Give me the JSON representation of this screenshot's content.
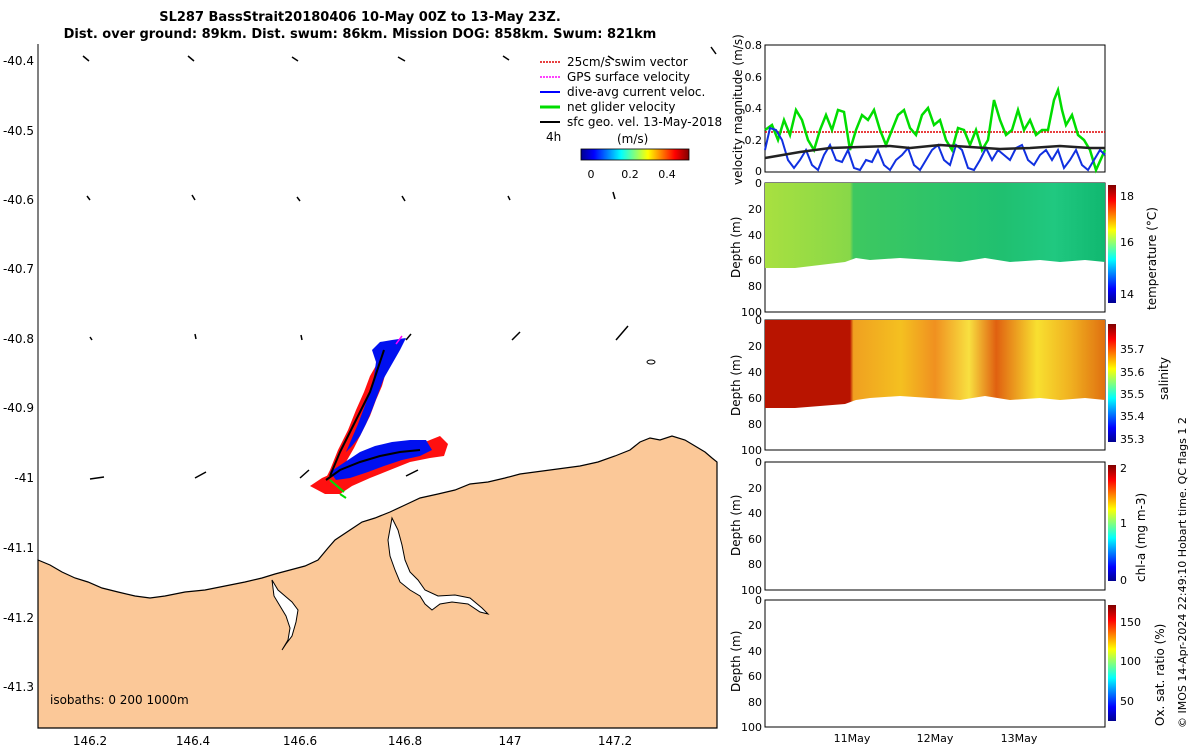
{
  "header": {
    "title_line1": "SL287 BassStrait20180406 10-May 00Z to 13-May 23Z.",
    "title_line2": "Dist. over ground: 89km. Dist. swum: 86km. Mission DOG: 858km. Swum: 821km"
  },
  "map": {
    "lat_ticks": [
      "-40.4",
      "-40.5",
      "-40.6",
      "-40.7",
      "-40.8",
      "-40.9",
      "-41",
      "-41.1",
      "-41.2",
      "-41.3"
    ],
    "lon_ticks": [
      "146.2",
      "146.4",
      "146.6",
      "146.8",
      "147",
      "147.2"
    ],
    "isobaths_label": "isobaths: 0   200  1000m",
    "legend": [
      {
        "label": "25cm/s swim vector",
        "color": "#e00000"
      },
      {
        "label": "GPS surface velocity",
        "color": "#ff00ff"
      },
      {
        "label": "dive-avg current veloc.",
        "color": "#0000ff"
      },
      {
        "label": "net glider velocity",
        "color": "#00dd00"
      },
      {
        "label": "sfc geo. vel. 13-May-2018",
        "color": "#000000"
      }
    ],
    "vector_scale_label": "4h",
    "colorbar_label": "(m/s)",
    "colorbar_ticks": [
      "0",
      "0.2",
      "0.4"
    ],
    "colors": {
      "land": "#fbc898",
      "sea": "#ffffff"
    }
  },
  "panels": {
    "velocity": {
      "ylabel": "velocity magnitude (m/s)",
      "yticks": [
        "0",
        "0.2",
        "0.4",
        "0.6",
        "0.8"
      ]
    },
    "temperature": {
      "ylabel": "Depth (m)",
      "yticks": [
        "0",
        "20",
        "40",
        "60",
        "80",
        "100"
      ],
      "cbar_label": "temperature (°C)",
      "cbar_ticks": [
        "18",
        "16",
        "14"
      ]
    },
    "salinity": {
      "ylabel": "Depth (m)",
      "yticks": [
        "0",
        "20",
        "40",
        "60",
        "80",
        "100"
      ],
      "cbar_label": "salinity",
      "cbar_ticks": [
        "35.7",
        "35.6",
        "35.5",
        "35.4",
        "35.3"
      ]
    },
    "chla": {
      "ylabel": "Depth (m)",
      "yticks": [
        "0",
        "20",
        "40",
        "60",
        "80",
        "100"
      ],
      "cbar_label": "chl-a (mg m-3)",
      "cbar_ticks": [
        "2",
        "1",
        "0"
      ]
    },
    "oxsat": {
      "ylabel": "Depth (m)",
      "yticks": [
        "0",
        "20",
        "40",
        "60",
        "80",
        "100"
      ],
      "cbar_label": "Ox. sat. ratio (%)",
      "cbar_ticks": [
        "150",
        "100",
        "50"
      ]
    },
    "xticks": [
      "11May",
      "12May",
      "13May"
    ]
  },
  "footer": {
    "credit": "© IMOS 14-Apr-2024 22:49:10 Hobart time. QC flags 1  2"
  }
}
